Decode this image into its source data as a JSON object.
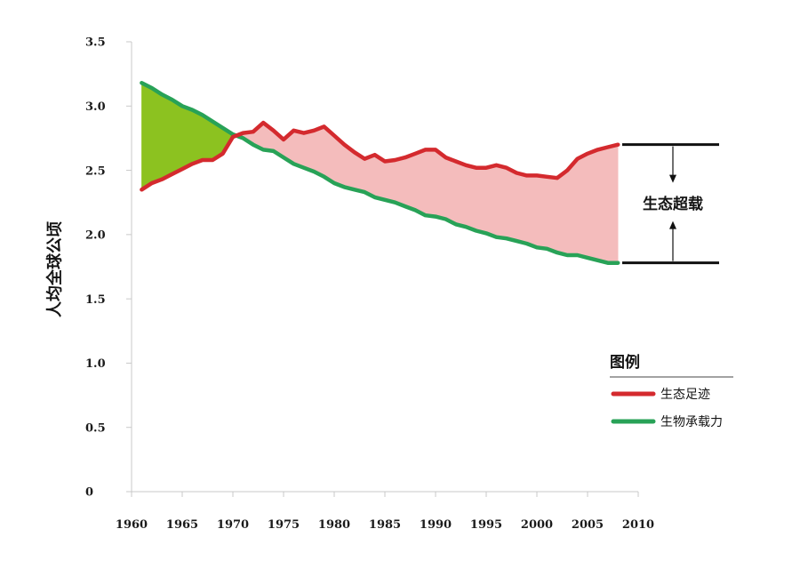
{
  "chart_data": {
    "type": "line",
    "ylabel": "人均全球公顷",
    "xlim": [
      1960,
      2010
    ],
    "ylim": [
      0,
      3.5
    ],
    "x_tick_labels": [
      "1960",
      "1965",
      "1970",
      "1975",
      "1980",
      "1985",
      "1990",
      "1995",
      "2000",
      "2005",
      "2010"
    ],
    "y_tick_labels": [
      "0",
      "0.5",
      "1.0",
      "1.5",
      "2.0",
      "2.5",
      "3.0",
      "3.5"
    ],
    "grid": false,
    "legend_position": "right",
    "x": [
      1961,
      1962,
      1963,
      1964,
      1965,
      1966,
      1967,
      1968,
      1969,
      1970,
      1971,
      1972,
      1973,
      1974,
      1975,
      1976,
      1977,
      1978,
      1979,
      1980,
      1981,
      1982,
      1983,
      1984,
      1985,
      1986,
      1987,
      1988,
      1989,
      1990,
      1991,
      1992,
      1993,
      1994,
      1995,
      1996,
      1997,
      1998,
      1999,
      2000,
      2001,
      2002,
      2003,
      2004,
      2005,
      2006,
      2007,
      2008
    ],
    "series": [
      {
        "name": "生态足迹",
        "color": "#d42a2e",
        "values": [
          2.35,
          2.4,
          2.43,
          2.47,
          2.51,
          2.55,
          2.58,
          2.58,
          2.63,
          2.76,
          2.79,
          2.8,
          2.87,
          2.81,
          2.74,
          2.81,
          2.79,
          2.81,
          2.84,
          2.77,
          2.7,
          2.64,
          2.59,
          2.62,
          2.57,
          2.58,
          2.6,
          2.63,
          2.66,
          2.66,
          2.6,
          2.57,
          2.54,
          2.52,
          2.52,
          2.54,
          2.52,
          2.48,
          2.46,
          2.46,
          2.45,
          2.44,
          2.5,
          2.59,
          2.63,
          2.66,
          2.68,
          2.7
        ]
      },
      {
        "name": "生物承载力",
        "color": "#28a257",
        "values": [
          3.18,
          3.14,
          3.09,
          3.05,
          3.0,
          2.97,
          2.93,
          2.88,
          2.83,
          2.78,
          2.75,
          2.7,
          2.66,
          2.65,
          2.6,
          2.55,
          2.52,
          2.49,
          2.45,
          2.4,
          2.37,
          2.35,
          2.33,
          2.29,
          2.27,
          2.25,
          2.22,
          2.19,
          2.15,
          2.14,
          2.12,
          2.08,
          2.06,
          2.03,
          2.01,
          1.98,
          1.97,
          1.95,
          1.93,
          1.9,
          1.89,
          1.86,
          1.84,
          1.84,
          1.82,
          1.8,
          1.78,
          1.78
        ]
      }
    ],
    "fill_colors": {
      "reserve": "#8cc220",
      "overshoot": "#f4bcbc"
    },
    "annotation": {
      "label": "生态超载",
      "color": "#111111"
    }
  },
  "legend": {
    "title": "图例",
    "rule_color": "#444444"
  }
}
